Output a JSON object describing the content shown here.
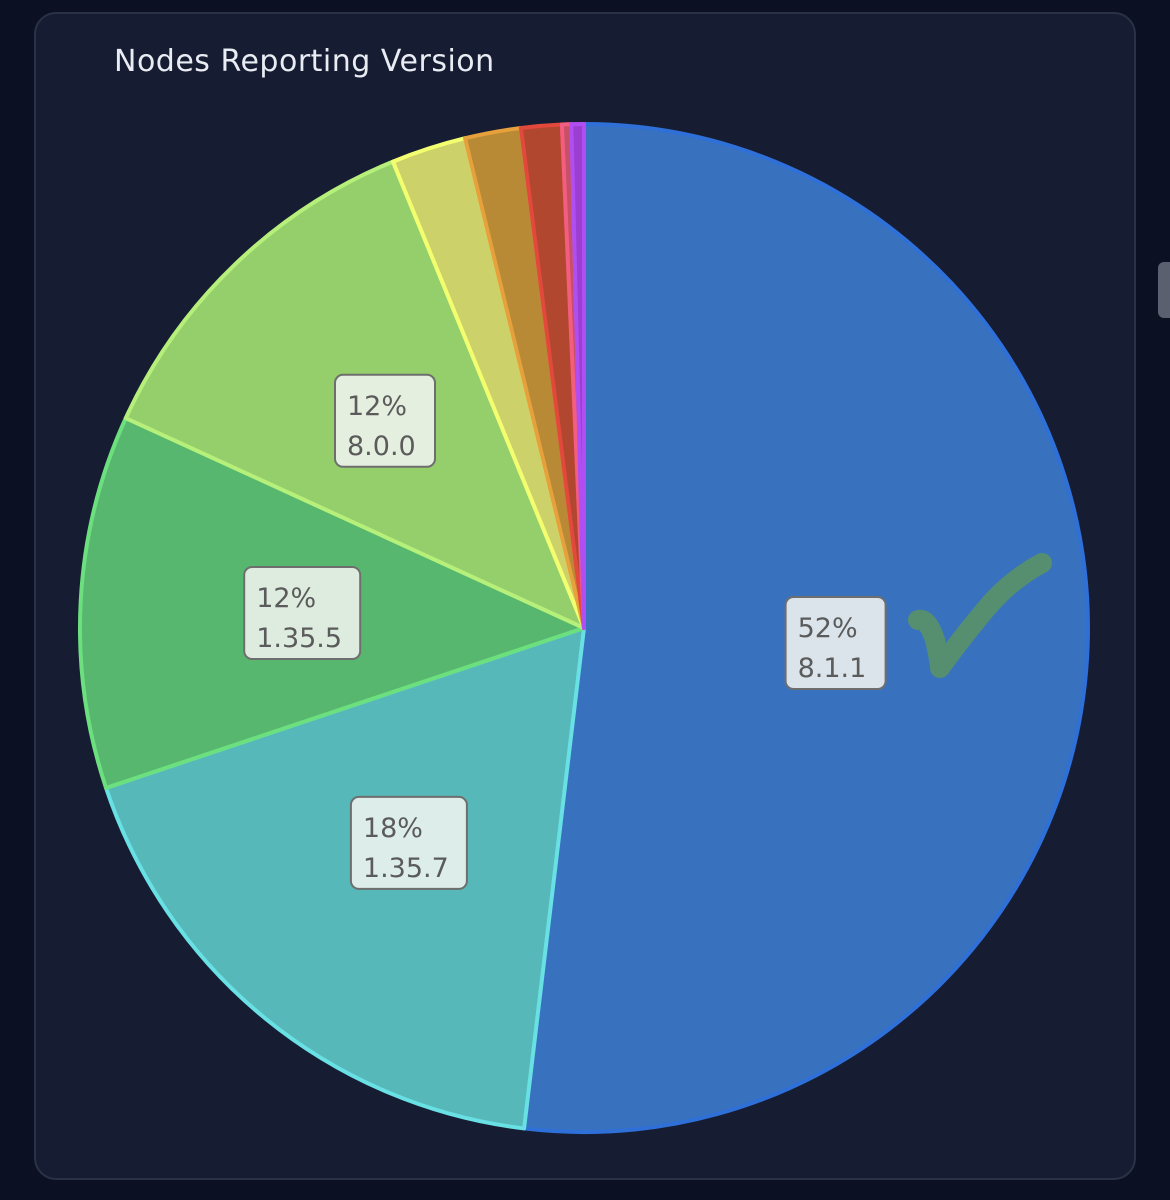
{
  "panel": {
    "title": "Nodes Reporting Version"
  },
  "chart_data": {
    "type": "pie",
    "title": "Nodes Reporting Version",
    "slices": [
      {
        "label": "8.1.1",
        "value": 52,
        "display": "52%",
        "color": "#3872be",
        "stroke": "#2f6fd8"
      },
      {
        "label": "1.35.7",
        "value": 18,
        "display": "18%",
        "color": "#56b8b9",
        "stroke": "#68e0e4"
      },
      {
        "label": "1.35.5",
        "value": 12,
        "display": "12%",
        "color": "#58b76e",
        "stroke": "#6ce07e"
      },
      {
        "label": "8.0.0",
        "value": 12,
        "display": "12%",
        "color": "#95cf6c",
        "stroke": "#b6f07a"
      },
      {
        "label": "",
        "value": 2.4,
        "display": "",
        "color": "#cdd16a",
        "stroke": "#f4ff70"
      },
      {
        "label": "",
        "value": 1.8,
        "display": "",
        "color": "#b88a36",
        "stroke": "#e6a03c"
      },
      {
        "label": "",
        "value": 1.3,
        "display": "",
        "color": "#b2472f",
        "stroke": "#e2483c"
      },
      {
        "label": "",
        "value": 0.3,
        "display": "",
        "color": "#c65067",
        "stroke": "#f35d80"
      },
      {
        "label": "",
        "value": 0.4,
        "display": "",
        "color": "#9b3fd0",
        "stroke": "#b14ef2"
      }
    ],
    "start": "12 o'clock",
    "direction": "clockwise",
    "legend": "none",
    "annotation": "green check mark on the 8.1.1 slice"
  }
}
